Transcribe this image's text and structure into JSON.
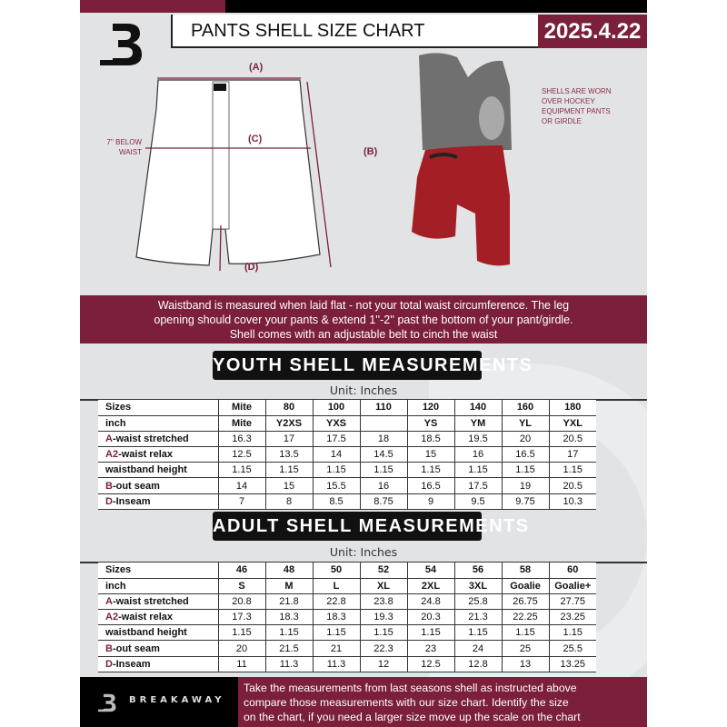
{
  "header": {
    "title": "PANTS SHELL SIZE CHART",
    "date": "2025.4.22",
    "logo_letter": "B"
  },
  "diagram": {
    "label_a": "(A)",
    "label_b": "(B)",
    "label_c": "(C)",
    "label_d": "(D)",
    "below_waist": "7'' BELOW",
    "below_waist2": "WAIST",
    "note": [
      "SHELLS ARE WORN",
      "OVER HOCKEY",
      "EQUIPMENT PANTS",
      "OR GIRDLE"
    ]
  },
  "colors": {
    "accent": "#7b1f3b",
    "dark": "#000000",
    "background": "#e2e3e5"
  },
  "banner": {
    "lines": [
      "Waistband is measured when laid flat - not your total waist circumference. The leg",
      "opening should cover your pants & extend 1''-2'' past the bottom of your pant/girdle.",
      "Shell comes with an adjustable belt to cinch the waist"
    ]
  },
  "youth": {
    "heading": "YOUTH SHELL MEASUREMENTS",
    "unit": "Unit: Inches",
    "rows": [
      {
        "key": "",
        "label": "Sizes",
        "values": [
          "Mite",
          "80",
          "100",
          "110",
          "120",
          "140",
          "160",
          "180"
        ]
      },
      {
        "key": "",
        "label": "inch",
        "values": [
          "Mite",
          "Y2XS",
          "YXS",
          "",
          "YS",
          "YM",
          "YL",
          "YXL"
        ]
      },
      {
        "key": "A",
        "label": "-waist stretched",
        "values": [
          "16.3",
          "17",
          "17.5",
          "18",
          "18.5",
          "19.5",
          "20",
          "20.5"
        ]
      },
      {
        "key": "A2",
        "label": "-waist relax",
        "values": [
          "12.5",
          "13.5",
          "14",
          "14.5",
          "15",
          "16",
          "16.5",
          "17"
        ]
      },
      {
        "key": "",
        "label": "waistband height",
        "values": [
          "1.15",
          "1.15",
          "1.15",
          "1.15",
          "1.15",
          "1.15",
          "1.15",
          "1.15"
        ]
      },
      {
        "key": "B",
        "label": "-out seam",
        "values": [
          "14",
          "15",
          "15.5",
          "16",
          "16.5",
          "17.5",
          "19",
          "20.5"
        ]
      },
      {
        "key": "D",
        "label": "-Inseam",
        "values": [
          "7",
          "8",
          "8.5",
          "8.75",
          "9",
          "9.5",
          "9.75",
          "10.3"
        ]
      }
    ]
  },
  "adult": {
    "heading": "ADULT SHELL MEASUREMENTS",
    "unit": "Unit: Inches",
    "rows": [
      {
        "key": "",
        "label": "Sizes",
        "values": [
          "46",
          "48",
          "50",
          "52",
          "54",
          "56",
          "58",
          "60"
        ]
      },
      {
        "key": "",
        "label": "inch",
        "values": [
          "S",
          "M",
          "L",
          "XL",
          "2XL",
          "3XL",
          "Goalie",
          "Goalie+"
        ]
      },
      {
        "key": "A",
        "label": "-waist stretched",
        "values": [
          "20.8",
          "21.8",
          "22.8",
          "23.8",
          "24.8",
          "25.8",
          "26.75",
          "27.75"
        ]
      },
      {
        "key": "A2",
        "label": "-waist relax",
        "values": [
          "17.3",
          "18.3",
          "18.3",
          "19.3",
          "20.3",
          "21.3",
          "22.25",
          "23.25"
        ]
      },
      {
        "key": "",
        "label": "waistband height",
        "values": [
          "1.15",
          "1.15",
          "1.15",
          "1.15",
          "1.15",
          "1.15",
          "1.15",
          "1.15"
        ]
      },
      {
        "key": "B",
        "label": "-out seam",
        "values": [
          "20",
          "21.5",
          "21",
          "22.3",
          "23",
          "24",
          "25",
          "25.5"
        ]
      },
      {
        "key": "D",
        "label": "-Inseam",
        "values": [
          "11",
          "11.3",
          "11.3",
          "12",
          "12.5",
          "12.8",
          "13",
          "13.25"
        ]
      }
    ]
  },
  "footer": {
    "brand": "BREAKAWAY",
    "lines": [
      "Take the measurements from last seasons shell as instructed above",
      "compare those measurements  with our size chart. Identify the size",
      "on the chart, if you need a larger size move up the scale on the chart"
    ]
  }
}
